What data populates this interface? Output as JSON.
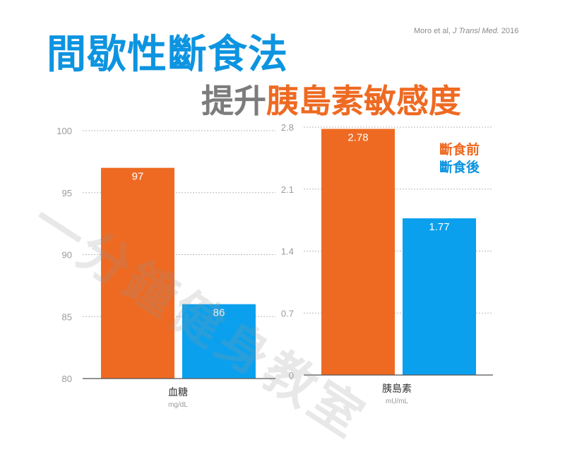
{
  "citation": {
    "authors": "Moro et al, ",
    "journal": "J Transl Med.",
    "year": " 2016"
  },
  "title": {
    "line1": "間歇性斷食法",
    "line2_gray": "提升",
    "line2_orange": "胰島素敏感度"
  },
  "legend": {
    "before": "斷食前",
    "after": "斷食後"
  },
  "watermark": "一分鐘健身教室",
  "colors": {
    "before": "#ee6a22",
    "after": "#0aa0ee",
    "title_blue": "#0d94e0",
    "gray": "#7c7c7c"
  },
  "chart_data": [
    {
      "type": "bar",
      "categories": [
        "血糖"
      ],
      "unit": "mg/dL",
      "ylim": [
        80,
        100
      ],
      "yticks": [
        "100",
        "95",
        "90",
        "85",
        "80"
      ],
      "series": [
        {
          "name": "斷食前",
          "values": [
            97
          ],
          "labels": [
            "97"
          ]
        },
        {
          "name": "斷食後",
          "values": [
            86
          ],
          "labels": [
            "86"
          ]
        }
      ],
      "grid": true,
      "legend_position": "top-right"
    },
    {
      "type": "bar",
      "categories": [
        "胰島素"
      ],
      "unit": "mU/mL",
      "ylim": [
        0,
        2.8
      ],
      "yticks": [
        "2.8",
        "2.1",
        "1.4",
        "0.7",
        "0"
      ],
      "series": [
        {
          "name": "斷食前",
          "values": [
            2.78
          ],
          "labels": [
            "2.78"
          ]
        },
        {
          "name": "斷食後",
          "values": [
            1.77
          ],
          "labels": [
            "1.77"
          ]
        }
      ],
      "grid": true,
      "legend_position": "top-right"
    }
  ]
}
